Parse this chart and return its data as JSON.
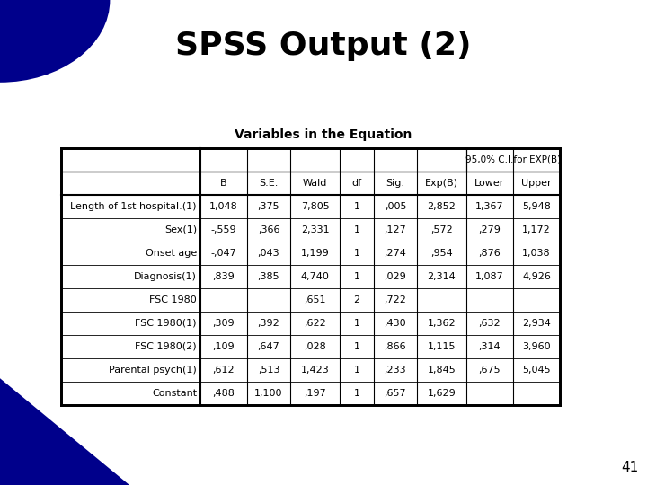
{
  "title": "SPSS Output (2)",
  "table_title": "Variables in the Equation",
  "span_label": "95,0% C.I.for EXP(B)",
  "header_labels": [
    "B",
    "S.E.",
    "Wald",
    "df",
    "Sig.",
    "Exp(B)",
    "Lower",
    "Upper"
  ],
  "rows": [
    [
      "Length of 1st hospital.(1)",
      "1,048",
      ",375",
      "7,805",
      "1",
      ",005",
      "2,852",
      "1,367",
      "5,948"
    ],
    [
      "Sex(1)",
      "-,559",
      ",366",
      "2,331",
      "1",
      ",127",
      ",572",
      ",279",
      "1,172"
    ],
    [
      "Onset age",
      "-,047",
      ",043",
      "1,199",
      "1",
      ",274",
      ",954",
      ",876",
      "1,038"
    ],
    [
      "Diagnosis(1)",
      ",839",
      ",385",
      "4,740",
      "1",
      ",029",
      "2,314",
      "1,087",
      "4,926"
    ],
    [
      "FSC 1980",
      "",
      "",
      ",651",
      "2",
      ",722",
      "",
      "",
      ""
    ],
    [
      "FSC 1980(1)",
      ",309",
      ",392",
      ",622",
      "1",
      ",430",
      "1,362",
      ",632",
      "2,934"
    ],
    [
      "FSC 1980(2)",
      ",109",
      ",647",
      ",028",
      "1",
      ",866",
      "1,115",
      ",314",
      "3,960"
    ],
    [
      "Parental psych(1)",
      ",612",
      ",513",
      "1,423",
      "1",
      ",233",
      "1,845",
      ",675",
      "5,045"
    ],
    [
      "Constant",
      ",488",
      "1,100",
      ",197",
      "1",
      ",657",
      "1,629",
      "",
      ""
    ]
  ],
  "page_number": "41",
  "bg_color": "#ffffff",
  "dark_blue": "#00008B",
  "title_fontsize": 26,
  "table_title_fontsize": 10,
  "cell_fontsize": 8,
  "header_fontsize": 8
}
